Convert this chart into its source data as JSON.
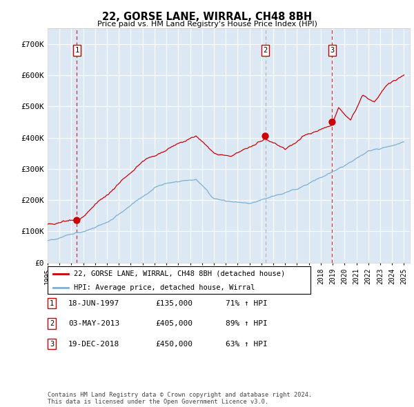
{
  "title": "22, GORSE LANE, WIRRAL, CH48 8BH",
  "subtitle": "Price paid vs. HM Land Registry's House Price Index (HPI)",
  "ylim": [
    0,
    750000
  ],
  "yticks": [
    0,
    100000,
    200000,
    300000,
    400000,
    500000,
    600000,
    700000
  ],
  "ytick_labels": [
    "£0",
    "£100K",
    "£200K",
    "£300K",
    "£400K",
    "£500K",
    "£600K",
    "£700K"
  ],
  "background_color": "#dce9f5",
  "sale_color": "#cc0000",
  "hpi_color": "#7aafd4",
  "vline2_color": "#aaaaaa",
  "sale_points": [
    {
      "date": 1997.46,
      "price": 135000,
      "label": "1"
    },
    {
      "date": 2013.33,
      "price": 405000,
      "label": "2"
    },
    {
      "date": 2018.96,
      "price": 450000,
      "label": "3"
    }
  ],
  "vline_dates": [
    1997.46,
    2018.96
  ],
  "vline_gray": [
    2013.33
  ],
  "legend_sale": "22, GORSE LANE, WIRRAL, CH48 8BH (detached house)",
  "legend_hpi": "HPI: Average price, detached house, Wirral",
  "table_rows": [
    {
      "num": "1",
      "date": "18-JUN-1997",
      "price": "£135,000",
      "pct": "71% ↑ HPI"
    },
    {
      "num": "2",
      "date": "03-MAY-2013",
      "price": "£405,000",
      "pct": "89% ↑ HPI"
    },
    {
      "num": "3",
      "date": "19-DEC-2018",
      "price": "£450,000",
      "pct": "63% ↑ HPI"
    }
  ],
  "footnote": "Contains HM Land Registry data © Crown copyright and database right 2024.\nThis data is licensed under the Open Government Licence v3.0."
}
